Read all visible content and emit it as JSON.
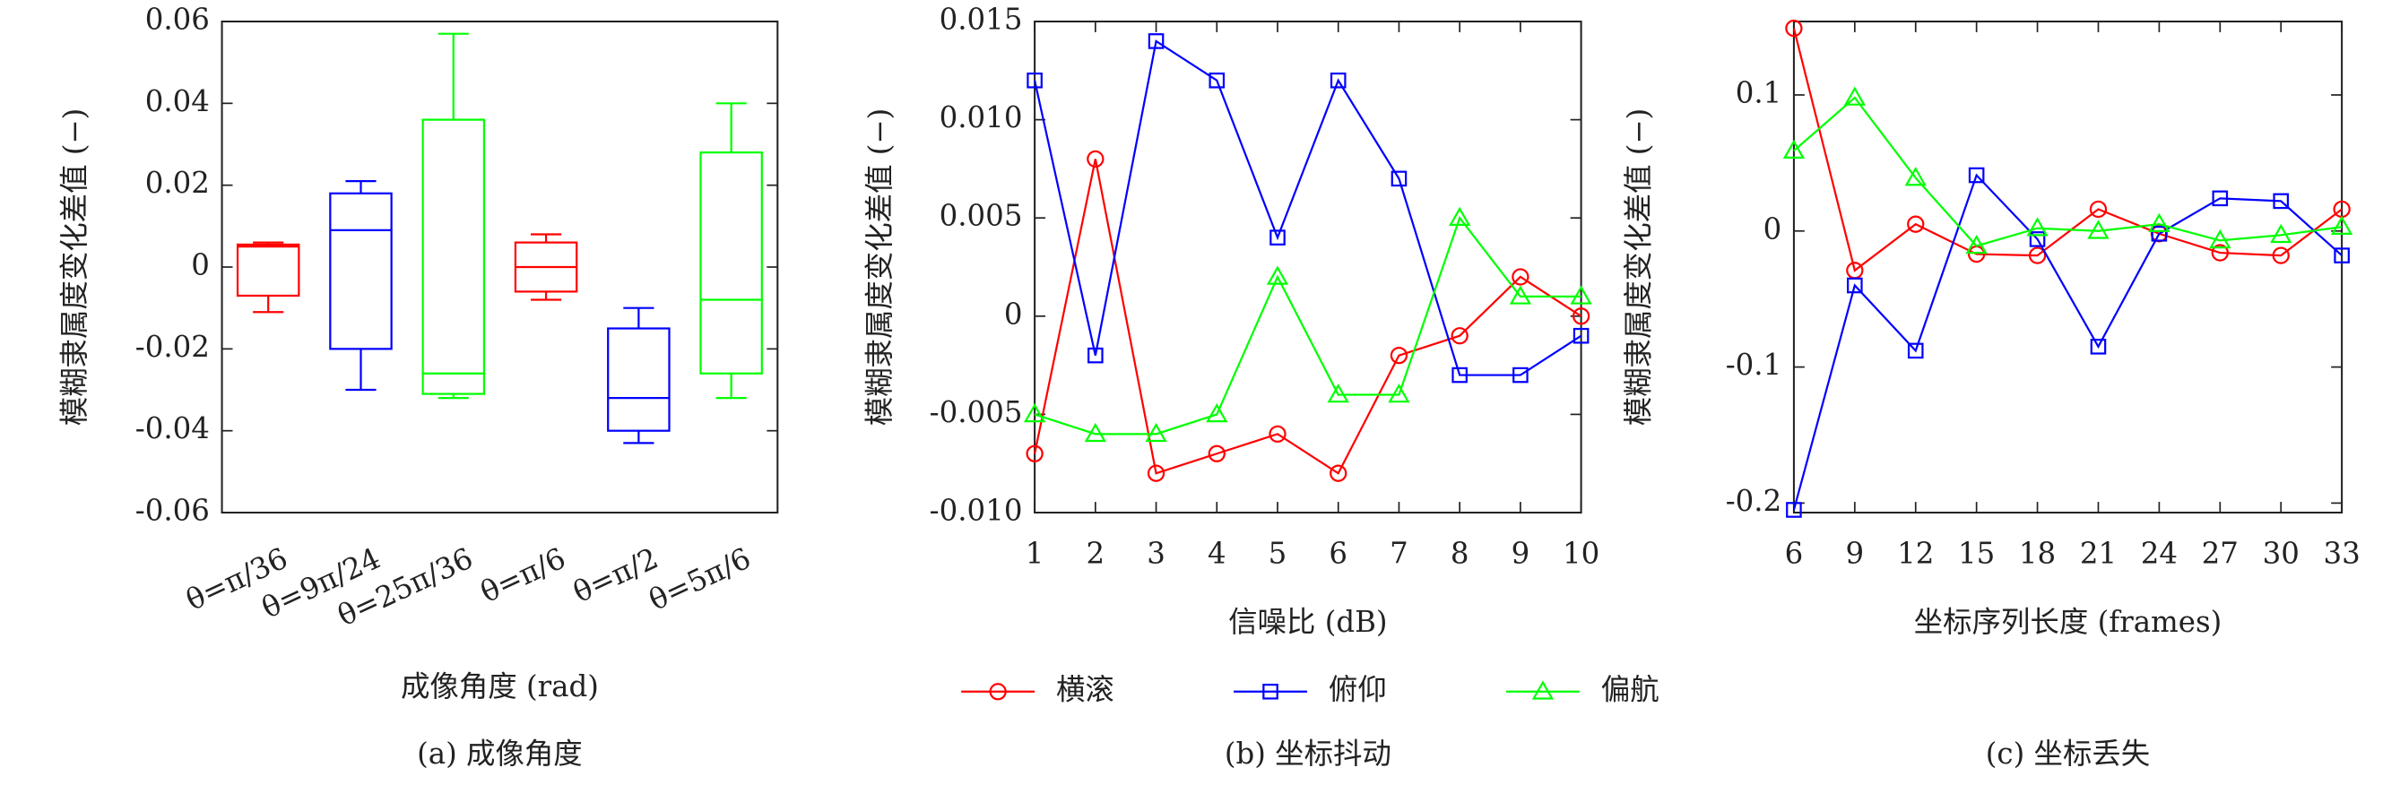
{
  "chart_data": [
    {
      "type": "box",
      "ylabel": "模糊隶属度变化差值 (−)",
      "xlabel": "成像角度 (rad)",
      "caption": "(a) 成像角度",
      "categories": [
        "θ=π/36",
        "θ=9π/24",
        "θ=25π/36",
        "θ=π/6",
        "θ=π/2",
        "θ=5π/6"
      ],
      "boxes": [
        {
          "color": "#ff0000",
          "min": -0.011,
          "q1": -0.007,
          "median": 0.005,
          "q3": 0.0055,
          "max": 0.006
        },
        {
          "color": "#0000ff",
          "min": -0.03,
          "q1": -0.02,
          "median": 0.009,
          "q3": 0.018,
          "max": 0.021
        },
        {
          "color": "#00ff00",
          "min": -0.032,
          "q1": -0.031,
          "median": -0.026,
          "q3": 0.036,
          "max": 0.057
        },
        {
          "color": "#ff0000",
          "min": -0.008,
          "q1": -0.006,
          "median": 0,
          "q3": 0.006,
          "max": 0.008
        },
        {
          "color": "#0000ff",
          "min": -0.043,
          "q1": -0.04,
          "median": -0.032,
          "q3": -0.015,
          "max": -0.01
        },
        {
          "color": "#00ff00",
          "min": -0.032,
          "q1": -0.026,
          "median": -0.008,
          "q3": 0.028,
          "max": 0.04
        }
      ],
      "ylim": [
        -0.06,
        0.06
      ],
      "yticks": [
        -0.06,
        -0.04,
        -0.02,
        0,
        0.02,
        0.04,
        0.06
      ]
    },
    {
      "type": "line",
      "ylabel": "模糊隶属度变化差值 (−)",
      "xlabel": "信噪比 (dB)",
      "caption": "(b) 坐标抖动",
      "x": [
        1,
        2,
        3,
        4,
        5,
        6,
        7,
        8,
        9,
        10
      ],
      "xlim": [
        1,
        10
      ],
      "xticks": [
        1,
        2,
        3,
        4,
        5,
        6,
        7,
        8,
        9,
        10
      ],
      "ylim": [
        -0.01,
        0.015
      ],
      "yticks": [
        {
          "value": -0.01,
          "label": "-0.010"
        },
        -0.005,
        0,
        0.005,
        {
          "value": 0.01,
          "label": "0.010"
        },
        0.015
      ],
      "series": [
        {
          "name": "横滚",
          "color": "#ff0000",
          "marker": "circle",
          "values": [
            -0.007,
            0.008,
            -0.008,
            -0.007,
            -0.006,
            -0.008,
            -0.002,
            -0.001,
            0.002,
            0
          ]
        },
        {
          "name": "俯仰",
          "color": "#0000ff",
          "marker": "square",
          "values": [
            0.012,
            -0.002,
            0.014,
            0.012,
            0.004,
            0.012,
            0.007,
            -0.003,
            -0.003,
            -0.001
          ]
        },
        {
          "name": "偏航",
          "color": "#00ff00",
          "marker": "triangle",
          "values": [
            -0.005,
            -0.006,
            -0.006,
            -0.005,
            0.002,
            -0.004,
            -0.004,
            0.005,
            0.001,
            0.001
          ]
        }
      ]
    },
    {
      "type": "line",
      "ylabel": "模糊隶属度变化差值 (−)",
      "xlabel": "坐标序列长度 (frames)",
      "caption": "(c) 坐标丢失",
      "x": [
        6,
        9,
        12,
        15,
        18,
        21,
        24,
        27,
        30,
        33
      ],
      "xlim": [
        6,
        33
      ],
      "xticks": [
        6,
        9,
        12,
        15,
        18,
        21,
        24,
        27,
        30,
        33
      ],
      "ylim": [
        -0.207,
        0.154
      ],
      "yticks": [
        -0.2,
        -0.1,
        0,
        0.1
      ],
      "series": [
        {
          "name": "横滚",
          "color": "#ff0000",
          "marker": "circle",
          "values": [
            0.149,
            -0.029,
            0.005,
            -0.017,
            -0.018,
            0.016,
            -0.002,
            -0.016,
            -0.018,
            0.016
          ]
        },
        {
          "name": "俯仰",
          "color": "#0000ff",
          "marker": "square",
          "values": [
            -0.205,
            -0.04,
            -0.088,
            0.041,
            -0.006,
            -0.085,
            -0.002,
            0.024,
            0.022,
            -0.018
          ]
        },
        {
          "name": "偏航",
          "color": "#00ff00",
          "marker": "triangle",
          "values": [
            0.059,
            0.098,
            0.039,
            -0.011,
            0.002,
            0,
            0.005,
            -0.007,
            -0.003,
            0.003
          ]
        }
      ]
    }
  ]
}
